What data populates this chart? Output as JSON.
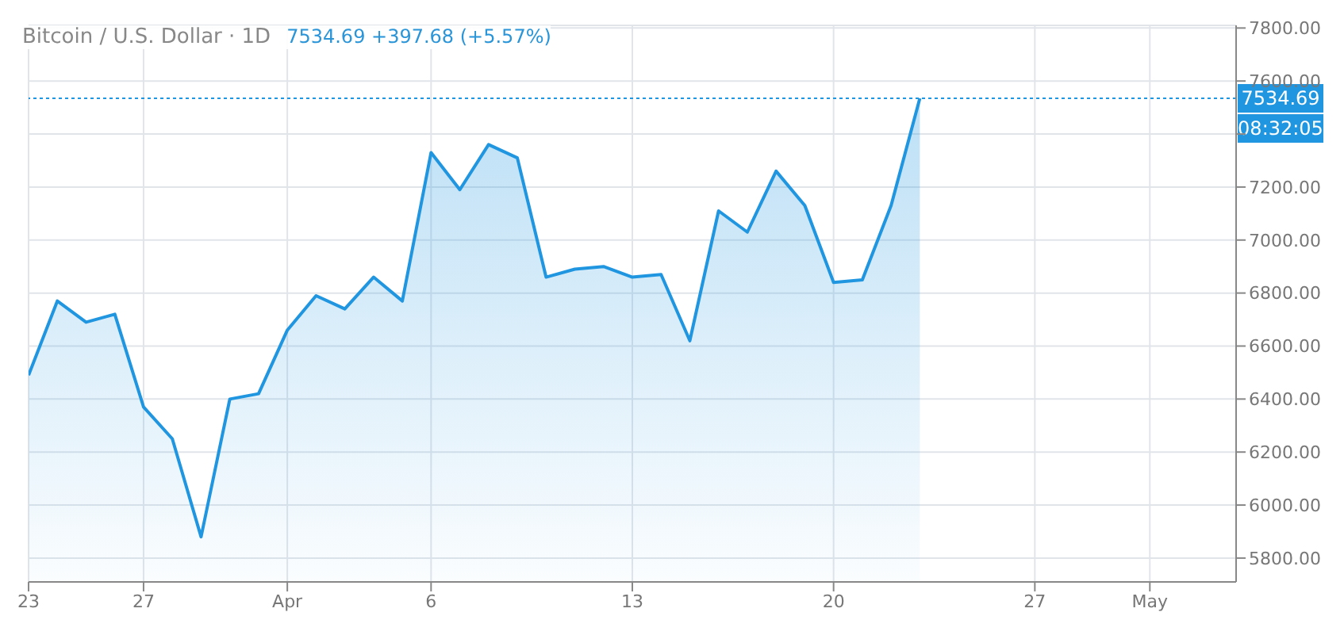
{
  "chart_data": {
    "type": "area",
    "title": "Bitcoin / U.S. Dollar · 1D",
    "subtitle": "7534.69 +397.68 (+5.57%)",
    "annotations": [
      "08:32:05"
    ],
    "x": [
      "--03-23",
      "--03-24",
      "--03-25",
      "--03-26",
      "--03-27",
      "--03-28",
      "--03-29",
      "--03-30",
      "--03-31",
      "--04-01",
      "--04-02",
      "--04-03",
      "--04-04",
      "--04-05",
      "--04-06",
      "--04-07",
      "--04-08",
      "--04-09",
      "--04-10",
      "--04-11",
      "--04-12",
      "--04-13",
      "--04-14",
      "--04-15",
      "--04-16",
      "--04-17",
      "--04-18",
      "--04-19",
      "--04-20",
      "--04-21",
      "--04-22",
      "--04-23"
    ],
    "series": [
      {
        "color": "#2196e0",
        "values": [
          6490,
          6770,
          6690,
          6720,
          6370,
          6250,
          5880,
          6400,
          6420,
          6660,
          6790,
          6740,
          6860,
          6770,
          7330,
          7190,
          7360,
          7310,
          6860,
          6890,
          6900,
          6860,
          6870,
          6620,
          7110,
          7030,
          7260,
          7130,
          6840,
          6850,
          7130,
          7534.69
        ]
      }
    ],
    "xlim": [
      "--03-23",
      "--05-04"
    ],
    "xticks": [
      {
        "value": "--03-23",
        "label": "23"
      },
      {
        "value": "--03-27",
        "label": "27"
      },
      {
        "value": "--04-01",
        "label": "Apr"
      },
      {
        "value": "--04-06",
        "label": "6"
      },
      {
        "value": "--04-13",
        "label": "13"
      },
      {
        "value": "--04-20",
        "label": "20"
      },
      {
        "value": "--04-27",
        "label": "27"
      },
      {
        "value": "--05-01",
        "label": "May"
      }
    ],
    "ylim": [
      5710,
      7810
    ],
    "yticks": [
      {
        "value": 5800,
        "label": "5800.00"
      },
      {
        "value": 6000,
        "label": "6000.00"
      },
      {
        "value": 6200,
        "label": "6200.00"
      },
      {
        "value": 6400,
        "label": "6400.00"
      },
      {
        "value": 6600,
        "label": "6600.00"
      },
      {
        "value": 6800,
        "label": "6800.00"
      },
      {
        "value": 7000,
        "label": "7000.00"
      },
      {
        "value": 7200,
        "label": "7200.00"
      },
      {
        "value": 7400,
        "label": null
      },
      {
        "value": 7600,
        "label": "7600.00"
      },
      {
        "value": 7800,
        "label": "7800.00"
      }
    ],
    "grid": true,
    "ref_lines": [
      {
        "axis": "y",
        "value": 7534.69,
        "label": "7534.69",
        "color": "#2196e0",
        "line_style": "dotted"
      }
    ]
  }
}
